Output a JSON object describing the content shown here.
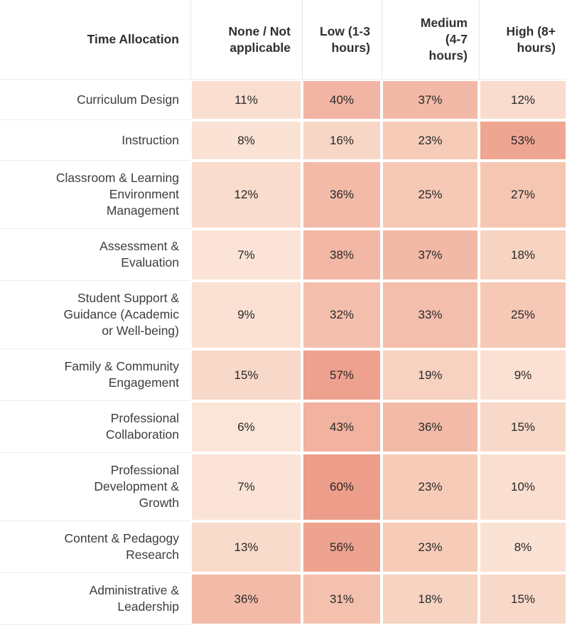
{
  "chart_data": {
    "type": "heatmap",
    "title": "Time Allocation",
    "columns": [
      "None / Not applicable",
      "Low (1-3 hours)",
      "Medium (4-7 hours)",
      "High (8+ hours)"
    ],
    "row_labels": [
      "Curriculum Design",
      "Instruction",
      "Classroom & Learning Environment Management",
      "Assessment & Evaluation",
      "Student Support & Guidance (Academic or Well-being)",
      "Family & Community Engagement",
      "Professional Collaboration",
      "Professional Development & Growth",
      "Content & Pedagogy Research",
      "Administrative & Leadership"
    ],
    "values": [
      [
        11,
        40,
        37,
        12
      ],
      [
        8,
        16,
        23,
        53
      ],
      [
        12,
        36,
        25,
        27
      ],
      [
        7,
        38,
        37,
        18
      ],
      [
        9,
        32,
        33,
        25
      ],
      [
        15,
        57,
        19,
        9
      ],
      [
        6,
        43,
        36,
        15
      ],
      [
        7,
        60,
        23,
        10
      ],
      [
        13,
        56,
        23,
        8
      ],
      [
        36,
        31,
        18,
        15
      ]
    ],
    "unit": "%",
    "value_range": [
      6,
      60
    ],
    "palette": {
      "description": "light peach (low) to salmon (high)",
      "stops": [
        [
          6,
          "#fbe5d9"
        ],
        [
          23,
          "#f6ccb8"
        ],
        [
          40,
          "#f2b5a3"
        ],
        [
          60,
          "#ec9e8a"
        ]
      ]
    },
    "legend_position": "none",
    "grid": "white gaps between cells, light gray row dividers in label column"
  },
  "display": {
    "corner_header": "Time Allocation",
    "column_headers": [
      "None / Not\napplicable",
      "Low (1-3\nhours)",
      "Medium\n(4-7\nhours)",
      "High (8+\nhours)"
    ],
    "row_labels": [
      "Curriculum Design",
      "Instruction",
      "Classroom & Learning\nEnvironment\nManagement",
      "Assessment &\nEvaluation",
      "Student Support &\nGuidance (Academic\nor Well-being)",
      "Family & Community\nEngagement",
      "Professional\nCollaboration",
      "Professional\nDevelopment &\nGrowth",
      "Content & Pedagogy\nResearch",
      "Administrative &\nLeadership"
    ],
    "colors": {
      "header_text": "#303030",
      "label_text": "#3d3d3d",
      "value_text": "#282828",
      "divider": "#ececec",
      "header_separator": "#e6e6e6",
      "background": "#ffffff"
    }
  }
}
